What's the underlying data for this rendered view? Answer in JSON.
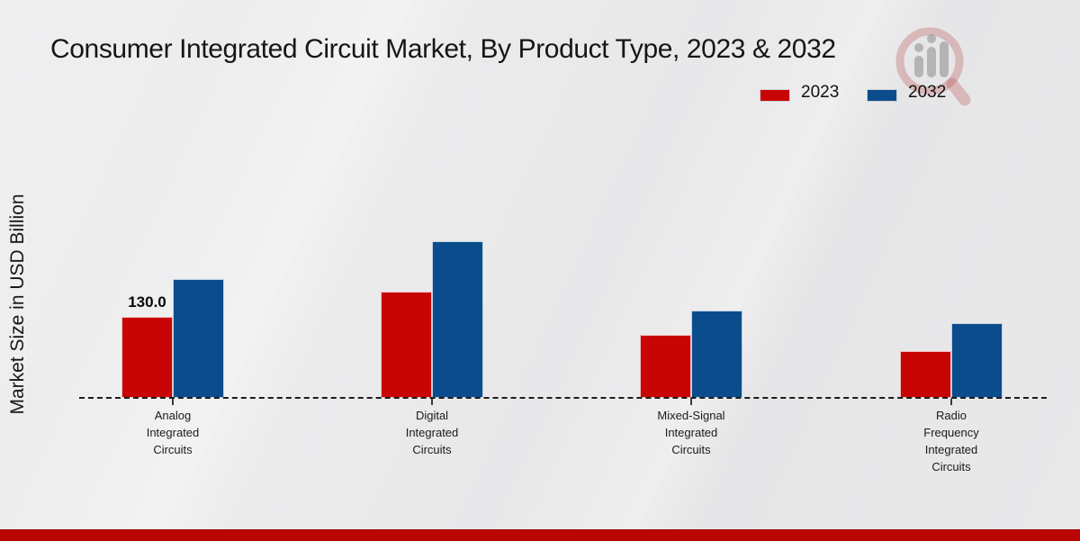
{
  "title": "Consumer Integrated Circuit Market, By Product Type, 2023 & 2032",
  "y_axis_label": "Market Size in USD Billion",
  "legend": {
    "items": [
      {
        "label": "2023",
        "color": "#c80505"
      },
      {
        "label": "2032",
        "color": "#0b4d8c"
      }
    ]
  },
  "colors": {
    "bar_2023": "#c80505",
    "bar_2032": "#0b4d8c",
    "footer_strip": "#bb0404",
    "text": "#161616",
    "background": "#e9e9ea",
    "watermark_ring": "rgba(185,75,75,0.30)",
    "watermark_bars": "rgba(120,120,120,0.45)"
  },
  "chart_data": {
    "type": "bar",
    "title": "Consumer Integrated Circuit Market, By Product Type, 2023 & 2032",
    "xlabel": "",
    "ylabel": "Market Size in USD Billion",
    "ylim": [
      0,
      260
    ],
    "grid": false,
    "legend_position": "top-right",
    "baseline_style": "dashed",
    "categories": [
      "Analog Integrated Circuits",
      "Digital Integrated Circuits",
      "Mixed-Signal Integrated Circuits",
      "Radio Frequency Integrated Circuits"
    ],
    "category_lines": [
      [
        "Analog",
        "Integrated",
        "Circuits"
      ],
      [
        "Digital",
        "Integrated",
        "Circuits"
      ],
      [
        "Mixed-Signal",
        "Integrated",
        "Circuits"
      ],
      [
        "Radio",
        "Frequency",
        "Integrated",
        "Circuits"
      ]
    ],
    "series": [
      {
        "name": "2023",
        "color": "#c80505",
        "values": [
          130.0,
          170,
          100,
          75
        ]
      },
      {
        "name": "2032",
        "color": "#0b4d8c",
        "values": [
          190,
          250,
          140,
          120
        ]
      }
    ],
    "data_labels": [
      {
        "category_index": 0,
        "series": "2023",
        "text": "130.0"
      }
    ]
  }
}
